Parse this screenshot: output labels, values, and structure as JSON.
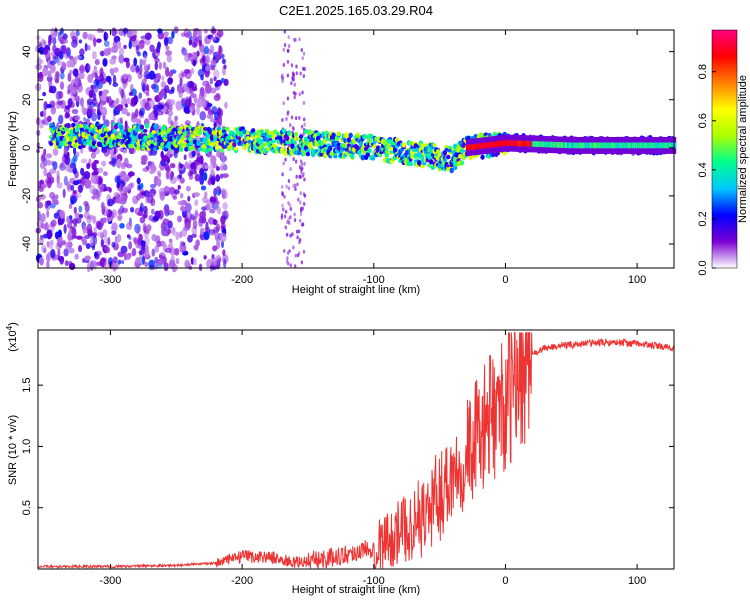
{
  "title": "C2E1.2025.165.03.29.R04",
  "chart_data": [
    {
      "type": "heatmap",
      "xlabel": "Height of straight line (km)",
      "ylabel": "Frequency (Hz)",
      "xlim": [
        -355,
        128
      ],
      "ylim": [
        -50,
        49
      ],
      "xticks": [
        -300,
        -200,
        -100,
        0,
        100
      ],
      "yticks": [
        -40,
        -20,
        0,
        20,
        40
      ],
      "colorbar": {
        "label": "Normalized spectral amplitude",
        "range": [
          0,
          0.97
        ],
        "ticks": [
          0.0,
          0.2,
          0.4,
          0.6,
          0.8
        ],
        "colors": [
          "#ffffff",
          "#7b00d4",
          "#0000ff",
          "#00c8ff",
          "#00ff90",
          "#aaff00",
          "#ffff00",
          "#ff8000",
          "#ff0000",
          "#ff0080"
        ]
      },
      "ridge": {
        "description_x": [
          -330,
          -300,
          -250,
          -200,
          -150,
          -100,
          -60,
          -40,
          -30,
          0,
          50,
          100,
          128
        ],
        "frequency": [
          5,
          5,
          4,
          3,
          2,
          0,
          -3,
          -5,
          0,
          2,
          1,
          1,
          1
        ]
      }
    },
    {
      "type": "line",
      "xlabel": "Height of straight line (km)",
      "ylabel": "SNR (10 * v/v)",
      "multiplier_label": "(x10",
      "multiplier_exp": "4",
      "xlim": [
        -355,
        128
      ],
      "ylim": [
        0,
        1.95
      ],
      "xticks": [
        -300,
        -200,
        -100,
        0,
        100
      ],
      "yticks": [
        0.5,
        1.0,
        1.5
      ],
      "ytick_labels": [
        "0.5",
        "1.0",
        "1.5"
      ],
      "color": "#ee3333",
      "series": [
        {
          "x": [
            -355,
            -300,
            -250,
            -220,
            -200,
            -180,
            -160,
            -140,
            -120,
            -100,
            -80,
            -60,
            -50,
            -40,
            -30,
            -20,
            -10,
            0,
            10,
            20,
            30,
            40,
            60,
            80,
            100,
            128
          ],
          "y": [
            0.02,
            0.02,
            0.03,
            0.05,
            0.1,
            0.1,
            0.05,
            0.08,
            0.12,
            0.18,
            0.3,
            0.45,
            0.6,
            0.8,
            0.95,
            1.1,
            1.25,
            1.35,
            1.55,
            1.75,
            1.8,
            1.82,
            1.84,
            1.85,
            1.84,
            1.8
          ]
        }
      ]
    }
  ]
}
